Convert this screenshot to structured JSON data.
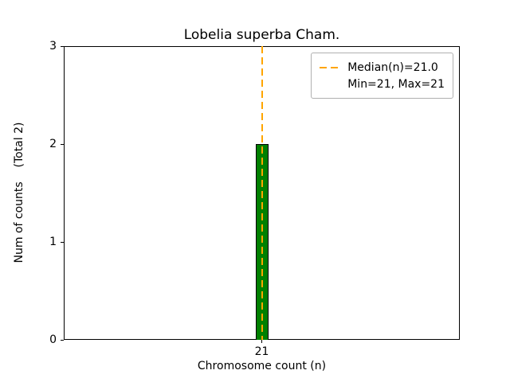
{
  "chart_data": {
    "type": "bar",
    "title": "Lobelia superba Cham.",
    "xlabel": "Chromosome count (n)",
    "ylabel": "Num of counts    (Total 2)",
    "categories": [
      "21"
    ],
    "values": [
      2
    ],
    "ylim": [
      0,
      3
    ],
    "yticks": [
      0,
      1,
      2,
      3
    ],
    "median": 21.0,
    "min": 21,
    "max": 21,
    "median_line_category": "21",
    "legend": {
      "entries": [
        "Median(n)=21.0",
        "Min=21, Max=21"
      ],
      "position": "upper right"
    },
    "grid": false,
    "colors": {
      "bar_fill": "#008000",
      "bar_edge": "#000000",
      "median_line": "#FFA500",
      "axis": "#000000",
      "background": "#ffffff"
    }
  }
}
